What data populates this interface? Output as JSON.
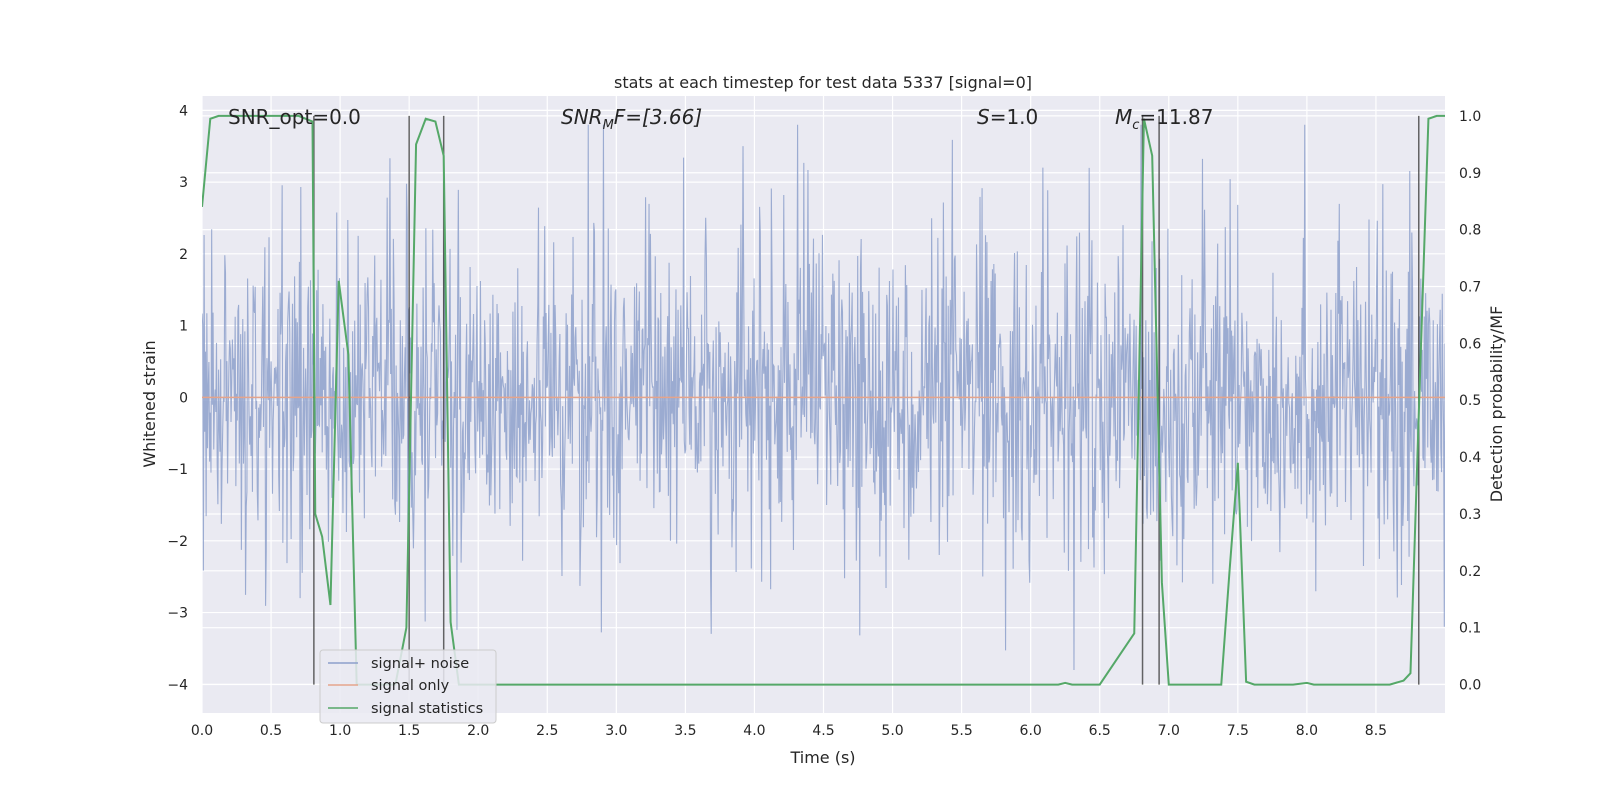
{
  "chart_data": {
    "type": "line",
    "title": "stats at each timestep for test data 5337 [signal=0]",
    "xlabel": "Time (s)",
    "ylabel": "Whitened strain",
    "y2label": "Detection probability/MF",
    "xlim": [
      0.0,
      9.0
    ],
    "ylim": [
      -4.4,
      4.2
    ],
    "y2lim": [
      -0.05,
      1.035
    ],
    "x_ticks": [
      0.0,
      0.5,
      1.0,
      1.5,
      2.0,
      2.5,
      3.0,
      3.5,
      4.0,
      4.5,
      5.0,
      5.5,
      6.0,
      6.5,
      7.0,
      7.5,
      8.0,
      8.5
    ],
    "x_tick_labels": [
      "0.0",
      "0.5",
      "1.0",
      "1.5",
      "2.0",
      "2.5",
      "3.0",
      "3.5",
      "4.0",
      "4.5",
      "5.0",
      "5.5",
      "6.0",
      "6.5",
      "7.0",
      "7.5",
      "8.0",
      "8.5"
    ],
    "y_ticks": [
      -4,
      -3,
      -2,
      -1,
      0,
      1,
      2,
      3,
      4
    ],
    "y_tick_labels": [
      "−4",
      "−3",
      "−2",
      "−1",
      "0",
      "1",
      "2",
      "3",
      "4"
    ],
    "y2_ticks": [
      0.0,
      0.1,
      0.2,
      0.3,
      0.4,
      0.5,
      0.6,
      0.7,
      0.8,
      0.9,
      1.0
    ],
    "y2_tick_labels": [
      "0.0",
      "0.1",
      "0.2",
      "0.3",
      "0.4",
      "0.5",
      "0.6",
      "0.7",
      "0.8",
      "0.9",
      "1.0"
    ],
    "grid": true,
    "legend": {
      "position": "lower-left",
      "entries": [
        "signal+ noise",
        "signal only",
        "signal statistics"
      ]
    },
    "annotations": {
      "snr_opt": "SNR_opt=0.0",
      "snr_mf_main": "SNR",
      "snr_mf_sub": "M",
      "snr_mf_rest": "F=[3.66]",
      "s_main": "S",
      "s_rest": "=1.0",
      "mc_main": "M",
      "mc_sub": "c",
      "mc_rest": "=11.87"
    },
    "series": [
      {
        "name": "signal+ noise",
        "color": "#8da0cb",
        "noise_params": {
          "n_samples": 1800,
          "core_std": 1.0,
          "peak_max": 3.8,
          "trough_min": -3.8
        }
      },
      {
        "name": "signal only",
        "color": "#e5a48b",
        "x": [
          0.0,
          9.0
        ],
        "y": [
          0.0,
          0.0
        ]
      },
      {
        "name": "signal statistics",
        "color": "#55a868",
        "x": [
          0.0,
          0.06,
          0.12,
          0.2,
          0.3,
          0.4,
          0.5,
          0.6,
          0.7,
          0.8,
          0.82,
          0.87,
          0.93,
          0.99,
          1.06,
          1.12,
          1.2,
          1.4,
          1.48,
          1.55,
          1.62,
          1.69,
          1.75,
          1.8,
          1.86,
          1.93,
          2.0,
          2.5,
          3.0,
          4.0,
          5.0,
          5.5,
          6.0,
          6.2,
          6.25,
          6.3,
          6.5,
          6.75,
          6.82,
          6.88,
          6.95,
          7.0,
          7.1,
          7.38,
          7.44,
          7.5,
          7.56,
          7.62,
          7.9,
          8.0,
          8.05,
          8.1,
          8.6,
          8.7,
          8.75,
          8.82,
          8.88,
          8.94,
          9.0
        ],
        "y": [
          0.84,
          0.995,
          1.0,
          1.0,
          1.0,
          1.0,
          1.0,
          1.0,
          1.0,
          0.99,
          0.3,
          0.26,
          0.14,
          0.71,
          0.58,
          0.0,
          0.0,
          0.0,
          0.1,
          0.95,
          0.995,
          0.99,
          0.93,
          0.11,
          0.0,
          0.0,
          0.0,
          0.0,
          0.0,
          0.0,
          0.0,
          0.0,
          0.0,
          0.0,
          0.003,
          0.0,
          0.0,
          0.09,
          0.995,
          0.93,
          0.18,
          0.0,
          0.0,
          0.0,
          0.2,
          0.39,
          0.005,
          0.0,
          0.0,
          0.003,
          0.0,
          0.0,
          0.0,
          0.007,
          0.02,
          0.55,
          0.995,
          1.0,
          1.0
        ]
      }
    ],
    "vertical_markers": [
      0.81,
      1.5,
      1.75,
      6.81,
      6.93,
      8.81
    ]
  }
}
